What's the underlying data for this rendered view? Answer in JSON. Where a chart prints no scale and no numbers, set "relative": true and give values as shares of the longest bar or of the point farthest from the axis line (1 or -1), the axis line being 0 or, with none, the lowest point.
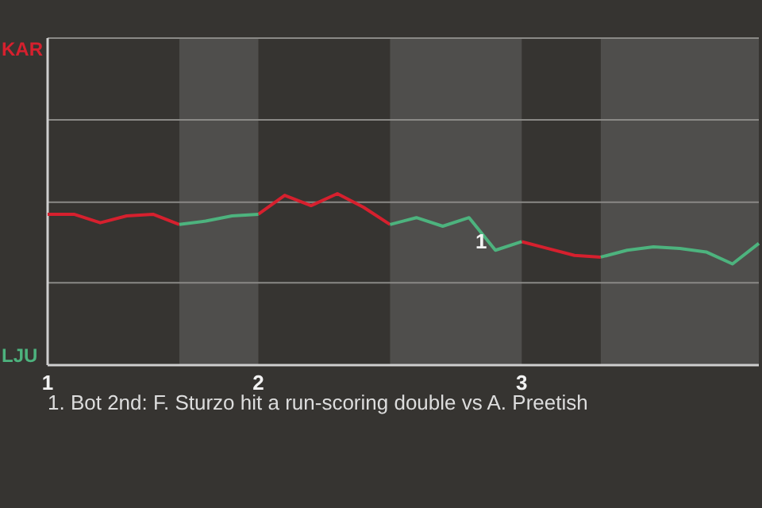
{
  "chart_data": {
    "type": "line",
    "relative": true,
    "legend": "left",
    "marker": "none",
    "line_style": "solid",
    "categories": [
      "1",
      null,
      null,
      null,
      null,
      null,
      null,
      null,
      "2",
      null,
      null,
      null,
      null,
      null,
      null,
      null,
      null,
      null,
      "3",
      null,
      null,
      null,
      null,
      null,
      null,
      null,
      null,
      null
    ],
    "series": [
      {
        "name": "KAR",
        "color": "#d6202e",
        "values": [
          0.88,
          0.88,
          0.83,
          0.87,
          0.88,
          0.82,
          null,
          null,
          0.88,
          0.99,
          0.93,
          1,
          0.92,
          0.82,
          null,
          null,
          null,
          null,
          0.72,
          0.68,
          0.64,
          0.63,
          null,
          null,
          null,
          null,
          null,
          null
        ]
      },
      {
        "name": "LJU",
        "color": "#4db37e",
        "values": [
          null,
          null,
          null,
          null,
          null,
          0.82,
          0.84,
          0.87,
          0.88,
          null,
          null,
          null,
          null,
          0.82,
          0.86,
          0.81,
          0.86,
          0.67,
          0.72,
          null,
          null,
          0.63,
          0.67,
          0.69,
          0.68,
          0.66,
          0.59,
          0.71
        ]
      }
    ],
    "ref_lines": [
      {
        "axis": "y",
        "value": 0.48,
        "color": "#8a8986"
      },
      {
        "axis": "y",
        "value": 0.95,
        "color": "#8a8986"
      },
      {
        "axis": "y",
        "value": 1.43,
        "color": "#8a8986"
      }
    ],
    "annotations": [
      "1",
      "1. Bot 2nd: F. Sturzo hit a run-scoring double vs A. Preetish"
    ]
  }
}
